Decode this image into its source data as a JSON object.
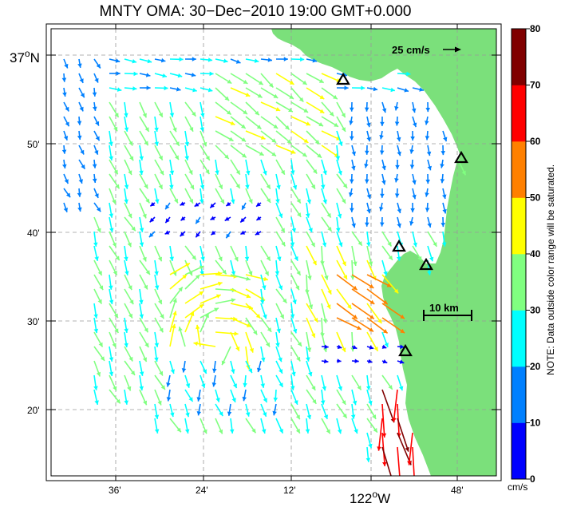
{
  "title": "MNTY OMA: 30−Dec−2010 19:00 GMT+0.000",
  "y_axis": {
    "top_label_deg": "37",
    "top_label_hemi": "N",
    "ticks": [
      "50'",
      "40'",
      "30'",
      "20'"
    ]
  },
  "x_axis": {
    "ticks": [
      "36'",
      "24'",
      "12'",
      "48'"
    ],
    "center_label_deg": "122",
    "center_label_hemi": "W"
  },
  "scale_vector_label": "25 cm/s",
  "scale_bar_label": "10 km",
  "colorbar": {
    "ticks": [
      "80",
      "70",
      "60",
      "50",
      "40",
      "30",
      "20",
      "10",
      "0"
    ],
    "unit": "cm/s",
    "colors": [
      "#0000ff",
      "#0080ff",
      "#00ffff",
      "#80ff80",
      "#ffff00",
      "#ff8000",
      "#ff0000",
      "#800000"
    ],
    "note": "NOTE: Data outside color range will be saturated."
  },
  "land_color": "#7be07b",
  "station_icon": "triangle-icon"
}
